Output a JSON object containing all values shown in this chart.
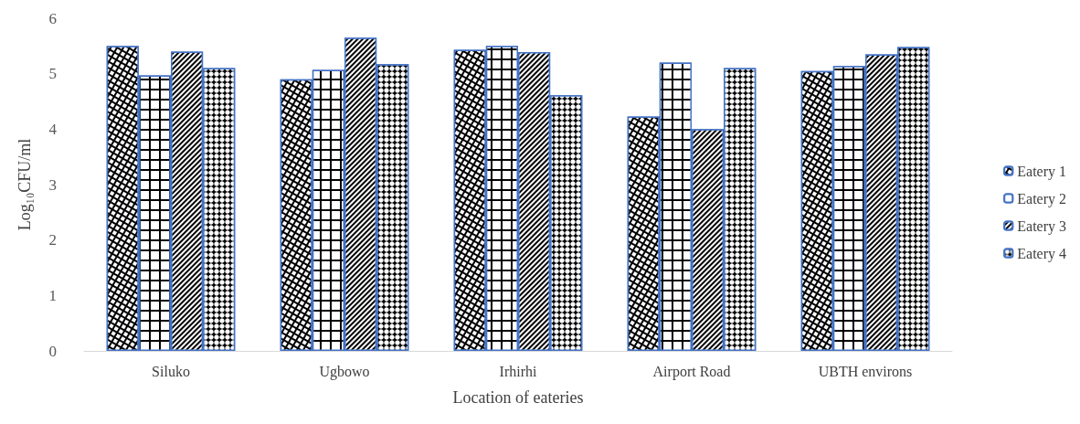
{
  "chart_data": {
    "type": "bar",
    "xlabel": "Location of eateries",
    "ylabel": "Log₁₀CFU/ml",
    "categories": [
      "Siluko",
      "Ugbowo",
      "Irhirhi",
      "Airport Road",
      "UBTH environs"
    ],
    "series": [
      {
        "name": "Eatery 1",
        "color": "#000000",
        "values": [
          5.5,
          4.9,
          5.43,
          4.23,
          5.05
        ]
      },
      {
        "name": "Eatery 2",
        "color": "#000000",
        "values": [
          4.97,
          5.07,
          5.5,
          5.2,
          5.14
        ]
      },
      {
        "name": "Eatery 3",
        "color": "#000000",
        "values": [
          5.4,
          5.65,
          5.39,
          4.0,
          5.35
        ]
      },
      {
        "name": "Eatery 4",
        "color": "#000000",
        "values": [
          5.1,
          5.17,
          4.61,
          5.1,
          5.48
        ]
      }
    ],
    "ylim": [
      0,
      6
    ],
    "yticks": [
      0,
      1,
      2,
      3,
      4,
      5,
      6
    ],
    "grid": false,
    "legend": "right"
  }
}
